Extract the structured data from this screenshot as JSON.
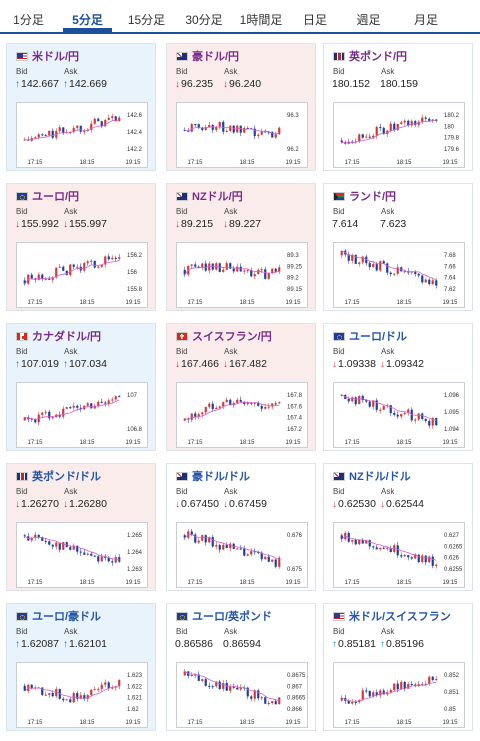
{
  "tabs": [
    "1分足",
    "5分足",
    "15分足",
    "30分足",
    "1時間足",
    "日足",
    "週足",
    "月足"
  ],
  "active_tab": 1,
  "labels": {
    "bid": "Bid",
    "ask": "Ask"
  },
  "colors": {
    "accent": "#1d4f9c",
    "up": "#1a8ad6",
    "down": "#d23a3a",
    "ma": "#d060d0",
    "candle_up": "#d23a3a",
    "candle_down": "#1f3fa0"
  },
  "pairs": [
    {
      "name": "米ドル/円",
      "flag": "us",
      "bg": "up",
      "dir": "up",
      "bid": "142.667",
      "ask": "142.669",
      "chart": {
        "y_ticks": [
          "142.6",
          "142.4",
          "142.2"
        ],
        "x_ticks": [
          "17:15",
          "18:15",
          "19:15"
        ],
        "trend": "up"
      }
    },
    {
      "name": "豪ドル/円",
      "flag": "au",
      "bg": "down",
      "dir": "down",
      "bid": "96.235",
      "ask": "96.240",
      "chart": {
        "y_ticks": [
          "96.3",
          "96.2"
        ],
        "x_ticks": [
          "17:15",
          "18:15",
          "19:15"
        ],
        "trend": "flat"
      }
    },
    {
      "name": "英ポンド/円",
      "flag": "uk",
      "bg": "neutral",
      "dir": "none",
      "bid": "180.152",
      "ask": "180.159",
      "chart": {
        "y_ticks": [
          "180.2",
          "180",
          "179.8",
          "179.6"
        ],
        "x_ticks": [
          "17:15",
          "18:15",
          "19:15"
        ],
        "trend": "up"
      }
    },
    {
      "name": "ユーロ/円",
      "flag": "eu",
      "bg": "down",
      "dir": "down",
      "bid": "155.992",
      "ask": "155.997",
      "chart": {
        "y_ticks": [
          "156.2",
          "156",
          "155.8"
        ],
        "x_ticks": [
          "17:15",
          "18:15",
          "19:15"
        ],
        "trend": "up"
      }
    },
    {
      "name": "NZドル/円",
      "flag": "nz",
      "bg": "down",
      "dir": "down",
      "bid": "89.215",
      "ask": "89.227",
      "chart": {
        "y_ticks": [
          "89.3",
          "89.25",
          "89.2",
          "89.15"
        ],
        "x_ticks": [
          "17:15",
          "18:15",
          "19:15"
        ],
        "trend": "flat"
      }
    },
    {
      "name": "ランド/円",
      "flag": "za",
      "bg": "neutral",
      "dir": "none",
      "bid": "7.614",
      "ask": "7.623",
      "chart": {
        "y_ticks": [
          "7.68",
          "7.66",
          "7.64",
          "7.62"
        ],
        "x_ticks": [
          "17:15",
          "18:15",
          "19:15"
        ],
        "trend": "down"
      }
    },
    {
      "name": "カナダドル/円",
      "flag": "ca",
      "bg": "up",
      "dir": "up",
      "bid": "107.019",
      "ask": "107.034",
      "chart": {
        "y_ticks": [
          "107",
          "106.8"
        ],
        "x_ticks": [
          "17:15",
          "18:15",
          "19:15"
        ],
        "trend": "up"
      }
    },
    {
      "name": "スイスフラン/円",
      "flag": "ch",
      "bg": "down",
      "dir": "down",
      "bid": "167.466",
      "ask": "167.482",
      "chart": {
        "y_ticks": [
          "167.8",
          "167.6",
          "167.4",
          "167.2"
        ],
        "x_ticks": [
          "17:15",
          "18:15",
          "19:15"
        ],
        "trend": "upflat"
      }
    },
    {
      "name": "ユーロ/ドル",
      "flag": "eu",
      "bg": "neutral",
      "dir": "down",
      "bid": "1.09338",
      "ask": "1.09342",
      "chart": {
        "y_ticks": [
          "1.096",
          "1.095",
          "1.094"
        ],
        "x_ticks": [
          "17:15",
          "18:15",
          "19:15"
        ],
        "trend": "down"
      }
    },
    {
      "name": "英ポンド/ドル",
      "flag": "uk",
      "bg": "down",
      "dir": "down",
      "bid": "1.26270",
      "ask": "1.26280",
      "chart": {
        "y_ticks": [
          "1.265",
          "1.264",
          "1.263"
        ],
        "x_ticks": [
          "17:15",
          "18:15",
          "19:15"
        ],
        "trend": "down"
      }
    },
    {
      "name": "豪ドル/ドル",
      "flag": "au",
      "bg": "neutral",
      "dir": "down",
      "bid": "0.67450",
      "ask": "0.67459",
      "chart": {
        "y_ticks": [
          "0.676",
          "0.675"
        ],
        "x_ticks": [
          "17:15",
          "18:15",
          "19:15"
        ],
        "trend": "down"
      }
    },
    {
      "name": "NZドル/ドル",
      "flag": "nz",
      "bg": "neutral",
      "dir": "down",
      "bid": "0.62530",
      "ask": "0.62544",
      "chart": {
        "y_ticks": [
          "0.627",
          "0.6265",
          "0.626",
          "0.6255"
        ],
        "x_ticks": [
          "17:15",
          "18:15",
          "19:15"
        ],
        "trend": "down"
      }
    },
    {
      "name": "ユーロ/豪ドル",
      "flag": "eu",
      "bg": "up",
      "dir": "up",
      "bid": "1.62087",
      "ask": "1.62101",
      "chart": {
        "y_ticks": [
          "1.623",
          "1.622",
          "1.621",
          "1.62"
        ],
        "x_ticks": [
          "17:15",
          "18:15",
          "19:15"
        ],
        "trend": "downup"
      }
    },
    {
      "name": "ユーロ/英ポンド",
      "flag": "eu",
      "bg": "neutral",
      "dir": "none",
      "bid": "0.86586",
      "ask": "0.86594",
      "chart": {
        "y_ticks": [
          "0.8675",
          "0.867",
          "0.8665",
          "0.866"
        ],
        "x_ticks": [
          "17:15",
          "18:15",
          "19:15"
        ],
        "trend": "down"
      }
    },
    {
      "name": "米ドル/スイスフラン",
      "flag": "us",
      "bg": "neutral",
      "dir": "up",
      "bid": "0.85181",
      "ask": "0.85196",
      "chart": {
        "y_ticks": [
          "0.852",
          "0.851",
          "0.85"
        ],
        "x_ticks": [
          "17:15",
          "18:15",
          "19:15"
        ],
        "trend": "up"
      }
    }
  ]
}
